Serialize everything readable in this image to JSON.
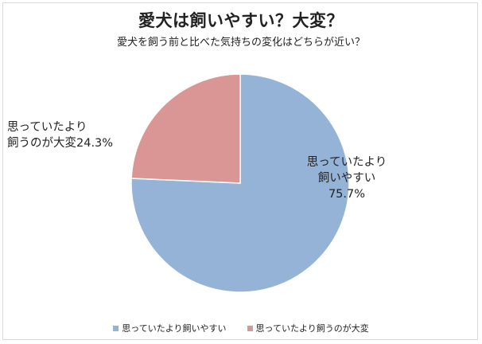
{
  "chart_data": {
    "type": "pie",
    "title": "愛犬は飼いやすい？大変？",
    "subtitle": "愛犬を飼う前と比べた気持ちの変化はどちらが近い？",
    "slices": [
      {
        "name": "思っていたより飼いやすい",
        "value": 75.7,
        "color": "#95b3d7",
        "label_lines": [
          "思っていたより",
          "飼いやすい",
          "75.7%"
        ]
      },
      {
        "name": "思っていたより飼うのが大変",
        "value": 24.3,
        "color": "#d99694",
        "label_lines": [
          "思っていたより",
          "飼うのが大変24.3%"
        ]
      }
    ],
    "start_angle": "12 o'clock",
    "direction": "clockwise",
    "legend": {
      "position": "bottom",
      "items": [
        "思っていたより飼いやすい",
        "思っていたより飼うのが大変"
      ]
    }
  }
}
